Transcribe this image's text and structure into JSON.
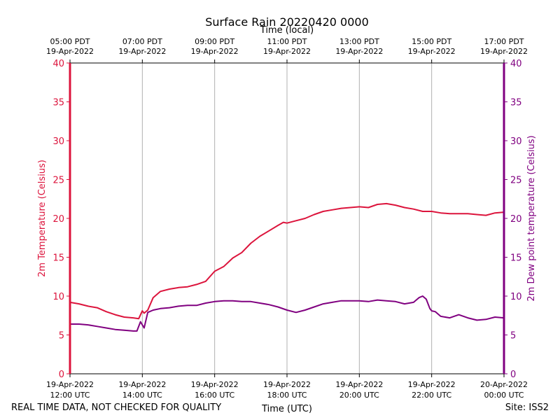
{
  "chart_data": {
    "type": "line",
    "title": "Surface Rain 20220420 0000",
    "top_axis_label": "Time (local)",
    "xlabel": "Time (UTC)",
    "ylabel_left": "2m Temperature (Celsius)",
    "ylabel_right": "2m Dew point temperature (Celsius)",
    "ylim": [
      0,
      40
    ],
    "yticks": [
      "0",
      "5",
      "10",
      "15",
      "20",
      "25",
      "30",
      "35",
      "40"
    ],
    "xlim_hours_utc": [
      12,
      24
    ],
    "grid": "vertical at major ticks",
    "bottom_ticks": [
      {
        "hour": 12,
        "date": "19-Apr-2022",
        "time": "12:00 UTC"
      },
      {
        "hour": 14,
        "date": "19-Apr-2022",
        "time": "14:00 UTC"
      },
      {
        "hour": 16,
        "date": "19-Apr-2022",
        "time": "16:00 UTC"
      },
      {
        "hour": 18,
        "date": "19-Apr-2022",
        "time": "18:00 UTC"
      },
      {
        "hour": 20,
        "date": "19-Apr-2022",
        "time": "20:00 UTC"
      },
      {
        "hour": 22,
        "date": "19-Apr-2022",
        "time": "22:00 UTC"
      },
      {
        "hour": 24,
        "date": "20-Apr-2022",
        "time": "00:00 UTC"
      }
    ],
    "top_ticks": [
      {
        "hour": 12,
        "time": "05:00 PDT",
        "date": "19-Apr-2022"
      },
      {
        "hour": 14,
        "time": "07:00 PDT",
        "date": "19-Apr-2022"
      },
      {
        "hour": 16,
        "time": "09:00 PDT",
        "date": "19-Apr-2022"
      },
      {
        "hour": 18,
        "time": "11:00 PDT",
        "date": "19-Apr-2022"
      },
      {
        "hour": 20,
        "time": "13:00 PDT",
        "date": "19-Apr-2022"
      },
      {
        "hour": 22,
        "time": "15:00 PDT",
        "date": "19-Apr-2022"
      },
      {
        "hour": 24,
        "time": "17:00 PDT",
        "date": "19-Apr-2022"
      }
    ],
    "series": [
      {
        "name": "2m Temperature",
        "color": "#dc143c",
        "x": [
          12.0,
          12.25,
          12.5,
          12.75,
          13.0,
          13.25,
          13.5,
          13.75,
          13.9,
          14.0,
          14.05,
          14.15,
          14.3,
          14.5,
          14.75,
          15.0,
          15.25,
          15.5,
          15.75,
          16.0,
          16.25,
          16.5,
          16.75,
          17.0,
          17.25,
          17.5,
          17.75,
          17.9,
          18.0,
          18.25,
          18.5,
          18.75,
          19.0,
          19.25,
          19.5,
          19.75,
          20.0,
          20.25,
          20.5,
          20.75,
          21.0,
          21.25,
          21.5,
          21.75,
          22.0,
          22.25,
          22.5,
          22.75,
          23.0,
          23.25,
          23.5,
          23.75,
          24.0
        ],
        "values": [
          9.2,
          9.0,
          8.7,
          8.5,
          8.0,
          7.6,
          7.3,
          7.2,
          7.1,
          8.1,
          7.8,
          8.2,
          9.8,
          10.6,
          10.9,
          11.1,
          11.2,
          11.5,
          11.9,
          13.2,
          13.8,
          14.9,
          15.6,
          16.8,
          17.7,
          18.4,
          19.1,
          19.5,
          19.4,
          19.7,
          20.0,
          20.5,
          20.9,
          21.1,
          21.3,
          21.4,
          21.5,
          21.4,
          21.8,
          21.9,
          21.7,
          21.4,
          21.2,
          20.9,
          20.9,
          20.7,
          20.6,
          20.6,
          20.6,
          20.5,
          20.4,
          20.7,
          20.8
        ]
      },
      {
        "name": "2m Dew point temperature",
        "color": "#800080",
        "x": [
          12.0,
          12.25,
          12.5,
          12.75,
          13.0,
          13.25,
          13.5,
          13.75,
          13.85,
          13.95,
          14.05,
          14.15,
          14.3,
          14.5,
          14.75,
          15.0,
          15.25,
          15.5,
          15.75,
          16.0,
          16.25,
          16.5,
          16.75,
          17.0,
          17.25,
          17.5,
          17.75,
          18.0,
          18.25,
          18.5,
          18.75,
          19.0,
          19.25,
          19.5,
          19.75,
          20.0,
          20.25,
          20.5,
          20.75,
          21.0,
          21.25,
          21.5,
          21.65,
          21.75,
          21.85,
          21.95,
          22.0,
          22.1,
          22.25,
          22.5,
          22.75,
          23.0,
          23.25,
          23.5,
          23.75,
          24.0
        ],
        "values": [
          6.4,
          6.4,
          6.3,
          6.1,
          5.9,
          5.7,
          5.6,
          5.5,
          5.5,
          6.7,
          5.9,
          7.9,
          8.2,
          8.4,
          8.5,
          8.7,
          8.8,
          8.8,
          9.1,
          9.3,
          9.4,
          9.4,
          9.3,
          9.3,
          9.1,
          8.9,
          8.6,
          8.2,
          7.9,
          8.2,
          8.6,
          9.0,
          9.2,
          9.4,
          9.4,
          9.4,
          9.3,
          9.5,
          9.4,
          9.3,
          9.0,
          9.2,
          9.8,
          10.0,
          9.6,
          8.4,
          8.1,
          8.0,
          7.4,
          7.2,
          7.6,
          7.2,
          6.9,
          7.0,
          7.3,
          7.2
        ]
      }
    ]
  },
  "footer": {
    "quality_note": "REAL TIME DATA, NOT CHECKED FOR QUALITY",
    "site": "Site: ISS2"
  }
}
